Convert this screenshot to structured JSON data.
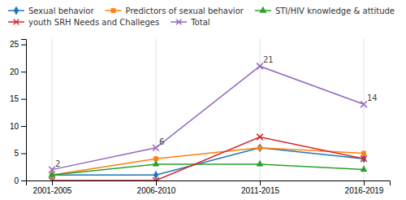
{
  "chart_data": {
    "type": "line",
    "categories": [
      "2001-2005",
      "2006-2010",
      "2011-2015",
      "2016-2019"
    ],
    "series": [
      {
        "name": "Sexual behavior",
        "values": [
          1,
          1,
          6,
          4
        ],
        "marker": "diamond",
        "line_style": "solid"
      },
      {
        "name": "Predictors of sexual behavior",
        "values": [
          1,
          4,
          6,
          5
        ],
        "marker": "square",
        "line_style": "solid"
      },
      {
        "name": "STI/HIV knowledge & attitude",
        "values": [
          1,
          3,
          3,
          2
        ],
        "marker": "triangle",
        "line_style": "solid"
      },
      {
        "name": "youth SRH Needs and Challeges",
        "values": [
          0,
          0,
          8,
          4
        ],
        "marker": "x",
        "line_style": "solid"
      },
      {
        "name": "Total",
        "values": [
          2,
          6,
          21,
          14
        ],
        "marker": "x",
        "line_style": "solid",
        "data_labels": true
      }
    ],
    "ylim": [
      0,
      26
    ],
    "yticks": [
      0,
      5,
      10,
      15,
      20,
      25
    ],
    "grid": "x",
    "legend": "top"
  }
}
